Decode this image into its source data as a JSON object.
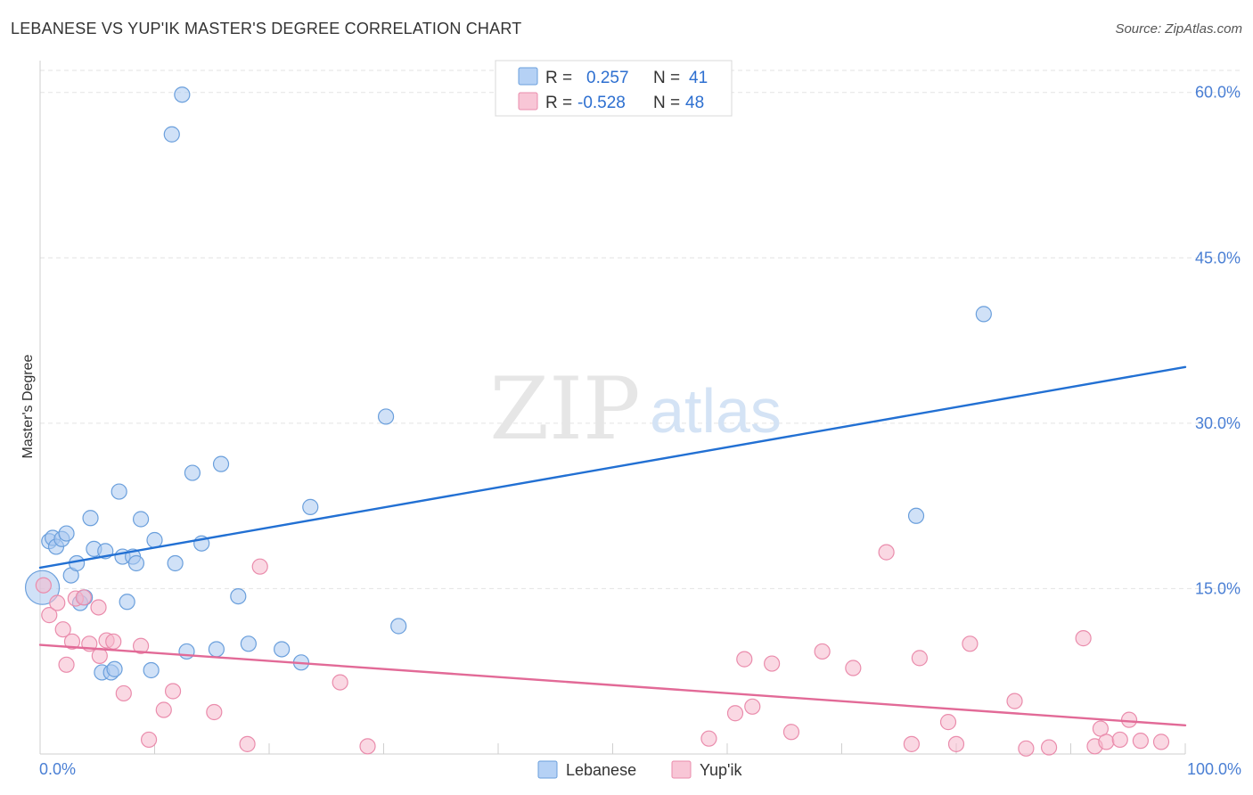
{
  "header": {
    "title": "LEBANESE VS YUP'IK MASTER'S DEGREE CORRELATION CHART",
    "source": "Source: ZipAtlas.com"
  },
  "watermark": {
    "zip": "ZIP",
    "atlas": "atlas"
  },
  "legend": {
    "rows": [
      {
        "r_label": "R =",
        "r_value": "0.257",
        "n_label": "N =",
        "n_value": "41"
      },
      {
        "r_label": "R =",
        "r_value": "-0.528",
        "n_label": "N =",
        "n_value": "48"
      }
    ]
  },
  "colors": {
    "blue_line": "#2270d3",
    "blue_fill": "#a9c9f1",
    "blue_stroke": "#6a9fdc",
    "pink_line": "#e26a97",
    "pink_fill": "#f6b8cc",
    "pink_stroke": "#ea8cac",
    "tick_text": "#4a7fd4",
    "grid": "#e3e3e3"
  },
  "chart_data": {
    "type": "scatter",
    "title": "LEBANESE VS YUP'IK MASTER'S DEGREE CORRELATION CHART",
    "xlabel": "",
    "ylabel": "Master's Degree",
    "xlim": [
      0,
      100
    ],
    "ylim": [
      0,
      62
    ],
    "x_tick_labels": [
      "0.0%",
      "100.0%"
    ],
    "y_ticks": [
      15,
      30,
      45,
      60
    ],
    "y_tick_labels": [
      "15.0%",
      "30.0%",
      "45.0%",
      "60.0%"
    ],
    "x_minor_ticks": [
      0,
      10,
      20,
      30,
      40,
      50,
      60,
      70,
      80,
      90,
      100
    ],
    "series": [
      {
        "name": "Lebanese",
        "r": 0.257,
        "n": 41,
        "trend": {
          "x": [
            0,
            100
          ],
          "y": [
            16.9,
            35.1
          ]
        },
        "points": [
          {
            "x": 0.2,
            "y": 15.1,
            "big": true
          },
          {
            "x": 0.8,
            "y": 19.3
          },
          {
            "x": 1.1,
            "y": 19.6
          },
          {
            "x": 1.4,
            "y": 18.8
          },
          {
            "x": 1.9,
            "y": 19.5
          },
          {
            "x": 2.3,
            "y": 20.0
          },
          {
            "x": 2.7,
            "y": 16.2
          },
          {
            "x": 3.2,
            "y": 17.3
          },
          {
            "x": 3.5,
            "y": 13.7
          },
          {
            "x": 3.9,
            "y": 14.2
          },
          {
            "x": 4.4,
            "y": 21.4
          },
          {
            "x": 4.7,
            "y": 18.6
          },
          {
            "x": 5.4,
            "y": 7.4
          },
          {
            "x": 5.7,
            "y": 18.4
          },
          {
            "x": 6.2,
            "y": 7.4
          },
          {
            "x": 6.5,
            "y": 7.7
          },
          {
            "x": 6.9,
            "y": 23.8
          },
          {
            "x": 7.2,
            "y": 17.9
          },
          {
            "x": 7.6,
            "y": 13.8
          },
          {
            "x": 8.1,
            "y": 17.9
          },
          {
            "x": 8.4,
            "y": 17.3
          },
          {
            "x": 8.8,
            "y": 21.3
          },
          {
            "x": 9.7,
            "y": 7.6
          },
          {
            "x": 10.0,
            "y": 19.4
          },
          {
            "x": 11.5,
            "y": 56.2
          },
          {
            "x": 11.8,
            "y": 17.3
          },
          {
            "x": 12.4,
            "y": 59.8
          },
          {
            "x": 12.8,
            "y": 9.3
          },
          {
            "x": 13.3,
            "y": 25.5
          },
          {
            "x": 14.1,
            "y": 19.1
          },
          {
            "x": 15.4,
            "y": 9.5
          },
          {
            "x": 15.8,
            "y": 26.3
          },
          {
            "x": 17.3,
            "y": 14.3
          },
          {
            "x": 18.2,
            "y": 10.0
          },
          {
            "x": 21.1,
            "y": 9.5
          },
          {
            "x": 22.8,
            "y": 8.3
          },
          {
            "x": 23.6,
            "y": 22.4
          },
          {
            "x": 31.3,
            "y": 11.6
          },
          {
            "x": 30.2,
            "y": 30.6
          },
          {
            "x": 76.5,
            "y": 21.6
          },
          {
            "x": 82.4,
            "y": 39.9
          }
        ]
      },
      {
        "name": "Yup'ik",
        "r": -0.528,
        "n": 48,
        "trend": {
          "x": [
            0,
            100
          ],
          "y": [
            9.9,
            2.6
          ]
        },
        "points": [
          {
            "x": 0.3,
            "y": 15.3
          },
          {
            "x": 0.8,
            "y": 12.6
          },
          {
            "x": 1.5,
            "y": 13.7
          },
          {
            "x": 2.0,
            "y": 11.3
          },
          {
            "x": 2.3,
            "y": 8.1
          },
          {
            "x": 2.8,
            "y": 10.2
          },
          {
            "x": 3.1,
            "y": 14.1
          },
          {
            "x": 3.8,
            "y": 14.2
          },
          {
            "x": 4.3,
            "y": 10.0
          },
          {
            "x": 5.2,
            "y": 8.9
          },
          {
            "x": 5.1,
            "y": 13.3
          },
          {
            "x": 5.8,
            "y": 10.3
          },
          {
            "x": 6.4,
            "y": 10.2
          },
          {
            "x": 7.3,
            "y": 5.5
          },
          {
            "x": 8.8,
            "y": 9.8
          },
          {
            "x": 9.5,
            "y": 1.3
          },
          {
            "x": 10.8,
            "y": 4.0
          },
          {
            "x": 11.6,
            "y": 5.7
          },
          {
            "x": 15.2,
            "y": 3.8
          },
          {
            "x": 18.1,
            "y": 0.9
          },
          {
            "x": 19.2,
            "y": 17.0
          },
          {
            "x": 26.2,
            "y": 6.5
          },
          {
            "x": 28.6,
            "y": 0.7
          },
          {
            "x": 58.4,
            "y": 1.4
          },
          {
            "x": 60.7,
            "y": 3.7
          },
          {
            "x": 61.5,
            "y": 8.6
          },
          {
            "x": 62.2,
            "y": 4.3
          },
          {
            "x": 63.9,
            "y": 8.2
          },
          {
            "x": 65.6,
            "y": 2.0
          },
          {
            "x": 68.3,
            "y": 9.3
          },
          {
            "x": 71.0,
            "y": 7.8
          },
          {
            "x": 73.9,
            "y": 18.3
          },
          {
            "x": 76.1,
            "y": 0.9
          },
          {
            "x": 76.8,
            "y": 8.7
          },
          {
            "x": 79.3,
            "y": 2.9
          },
          {
            "x": 80.0,
            "y": 0.9
          },
          {
            "x": 81.2,
            "y": 10.0
          },
          {
            "x": 85.1,
            "y": 4.8
          },
          {
            "x": 86.1,
            "y": 0.5
          },
          {
            "x": 88.1,
            "y": 0.6
          },
          {
            "x": 91.1,
            "y": 10.5
          },
          {
            "x": 92.1,
            "y": 0.7
          },
          {
            "x": 92.6,
            "y": 2.3
          },
          {
            "x": 93.1,
            "y": 1.1
          },
          {
            "x": 94.3,
            "y": 1.3
          },
          {
            "x": 95.1,
            "y": 3.1
          },
          {
            "x": 96.1,
            "y": 1.2
          },
          {
            "x": 97.9,
            "y": 1.1
          }
        ]
      }
    ]
  }
}
